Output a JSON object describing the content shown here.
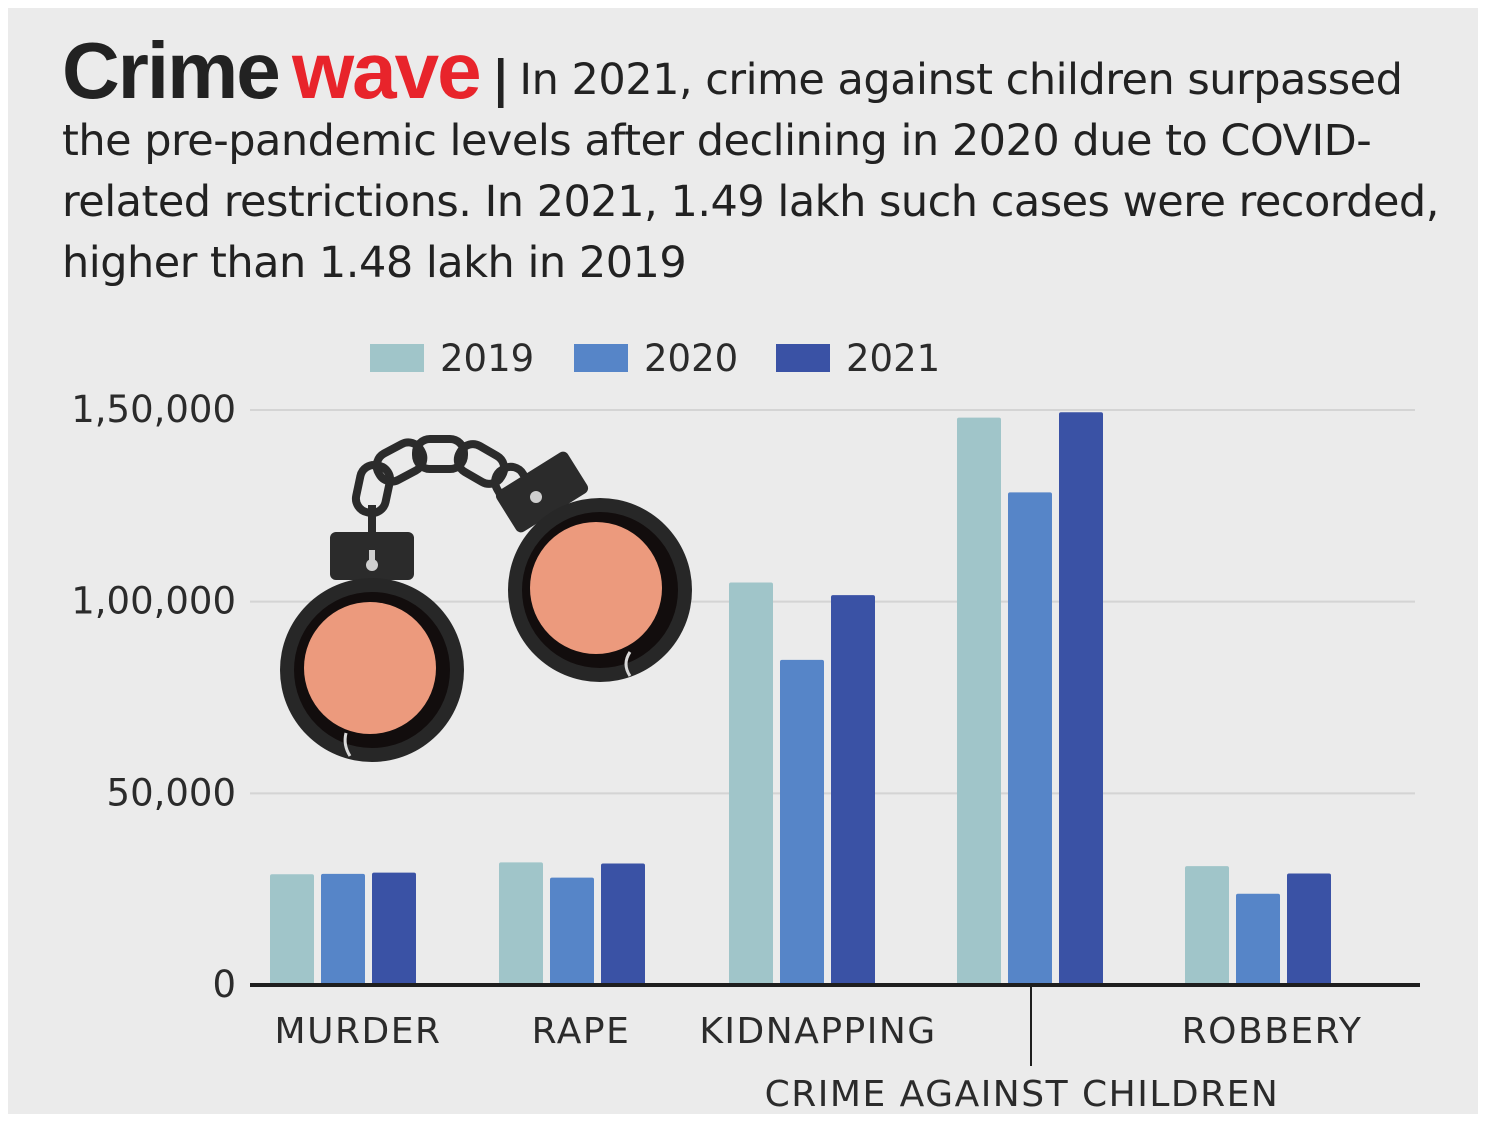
{
  "headline": {
    "title_main": "Crime",
    "title_accent": "wave",
    "separator": "|",
    "subtitle": "In 2021, crime against children surpassed the pre-pandemic levels after declining in 2020 due to COVID-related restrictions. In 2021, 1.49 lakh such cases were recorded, higher than 1.48 lakh in 2019"
  },
  "colors": {
    "background": "#ebebeb",
    "accent": "#e8242b",
    "series_2019": "#a0c5c9",
    "series_2020": "#5685c8",
    "series_2021": "#3a52a5",
    "grid": "#d4d4d4",
    "axis": "#1e1e1e"
  },
  "illustration": {
    "icon": "handcuffs-icon"
  },
  "chart_data": {
    "type": "bar",
    "title": "",
    "xlabel": "",
    "ylabel": "",
    "categories": [
      "MURDER",
      "RAPE",
      "KIDNAPPING",
      "CRIME AGAINST CHILDREN",
      "ROBBERY"
    ],
    "series": [
      {
        "name": "2019",
        "values": [
          28900,
          32000,
          105000,
          148000,
          31000
        ]
      },
      {
        "name": "2020",
        "values": [
          29000,
          28000,
          84800,
          128500,
          23800
        ]
      },
      {
        "name": "2021",
        "values": [
          29300,
          31700,
          101700,
          149400,
          29100
        ]
      }
    ],
    "ylim": [
      0,
      150000
    ],
    "yticks": [
      0,
      50000,
      100000,
      150000
    ],
    "ytick_labels": [
      "0",
      "50,000",
      "1,00,000",
      "1,50,000"
    ],
    "grid": true,
    "legend": "top-center"
  }
}
